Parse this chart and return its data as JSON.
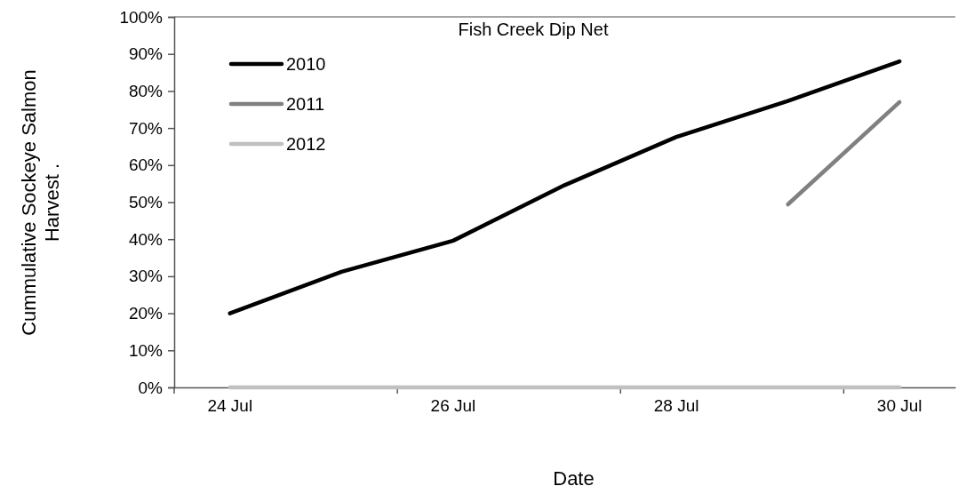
{
  "chart_data": {
    "type": "line",
    "title": "Fish Creek Dip Net",
    "xlabel": "Date",
    "ylabel": "Cummulative Sockeye Salmon\nHarvest  .",
    "categories": [
      "24 Jul",
      null,
      "26 Jul",
      null,
      "28 Jul",
      null,
      "30 Jul"
    ],
    "series": [
      {
        "name": "2010",
        "color": "#000000",
        "values": [
          20,
          31.2,
          39.6,
          54.6,
          67.6,
          77.3,
          88
        ]
      },
      {
        "name": "2011",
        "color": "#808080",
        "values": [
          null,
          null,
          null,
          null,
          null,
          49.4,
          77
        ]
      },
      {
        "name": "2012",
        "color": "#c0c0c0",
        "values": [
          0,
          0,
          0,
          0,
          0,
          0,
          0
        ]
      }
    ],
    "ylim": [
      0,
      100
    ],
    "yticks": [
      {
        "value": 0,
        "label": "0%"
      },
      {
        "value": 10,
        "label": "10%"
      },
      {
        "value": 20,
        "label": "20%"
      },
      {
        "value": 30,
        "label": "30%"
      },
      {
        "value": 40,
        "label": "40%"
      },
      {
        "value": 50,
        "label": "50%"
      },
      {
        "value": 60,
        "label": "60%"
      },
      {
        "value": 70,
        "label": "70%"
      },
      {
        "value": 80,
        "label": "80%"
      },
      {
        "value": 90,
        "label": "90%"
      },
      {
        "value": 100,
        "label": "100%"
      }
    ],
    "legend": "top left",
    "grid": false,
    "marker": "none",
    "line_style": "solid"
  }
}
